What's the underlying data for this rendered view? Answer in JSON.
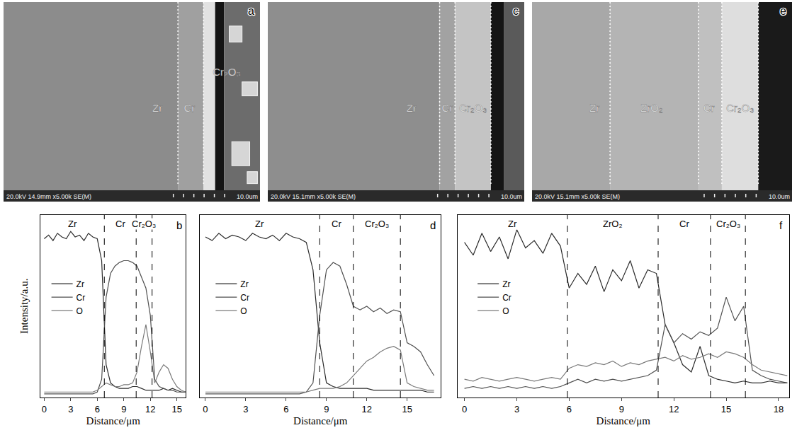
{
  "images": [
    {
      "panel_label": "a",
      "labels": [
        "Zr",
        "Cr",
        "Cr₂O₃"
      ],
      "info": "20.0kV 14.9mm x5.00k SE(M)",
      "scale_bar": "10.0um"
    },
    {
      "panel_label": "c",
      "labels": [
        "Zr",
        "Cr",
        "Cr₂O₃"
      ],
      "info": "20.0kV 15.1mm x5.00k SE(M)",
      "scale_bar": "10.0um"
    },
    {
      "panel_label": "e",
      "labels": [
        "Zr",
        "ZrO₂",
        "Cr",
        "Cr₂O₃"
      ],
      "info": "20.0kV 15.1mm x5.00k SE(M)",
      "scale_bar": "10.0um"
    }
  ],
  "chart_data": [
    {
      "type": "line",
      "panel_label": "b",
      "x_label": "Distance/μm",
      "y_label": "Intensity/a.u.",
      "xlim": [
        -0.4,
        16
      ],
      "xticks": [
        0,
        3,
        6,
        9,
        12,
        15
      ],
      "ylim": [
        0,
        100
      ],
      "tick_labels": "x",
      "legend": "left",
      "regions": [
        "Zr",
        "Cr",
        "Cr₂O₃"
      ],
      "boundaries": [
        6.8,
        10.4,
        12.2
      ],
      "x": [
        0,
        0.5,
        1,
        1.5,
        2,
        2.5,
        3,
        3.5,
        4,
        4.5,
        5,
        5.5,
        6,
        6.5,
        7,
        7.5,
        8,
        8.5,
        9,
        9.5,
        10,
        10.5,
        11,
        11.5,
        12,
        12.5,
        13,
        13.5,
        14,
        14.5,
        15,
        15.5,
        16
      ],
      "series": [
        {
          "name": "Zr",
          "color": "#2b2b2b",
          "values": [
            87,
            89,
            86,
            90,
            88,
            87,
            91,
            88,
            89,
            86,
            90,
            88,
            87,
            75,
            18,
            8,
            6,
            5,
            5,
            5,
            6,
            6,
            5,
            4,
            4,
            4,
            4,
            5,
            4,
            5,
            4,
            3,
            3
          ]
        },
        {
          "name": "Cr",
          "color": "#505050",
          "values": [
            2,
            2,
            2,
            2,
            2,
            2,
            2,
            2,
            2,
            2,
            2,
            2,
            3,
            10,
            55,
            68,
            72,
            74,
            75,
            75,
            74,
            72,
            66,
            60,
            45,
            10,
            6,
            5,
            4,
            4,
            3,
            3,
            3
          ]
        },
        {
          "name": "O",
          "color": "#7a7a7a",
          "values": [
            3,
            3,
            3,
            3,
            3,
            3,
            3,
            3,
            3,
            3,
            3,
            3,
            4,
            6,
            8,
            7,
            6,
            6,
            7,
            7,
            8,
            14,
            28,
            40,
            25,
            8,
            14,
            18,
            16,
            10,
            6,
            4,
            3
          ]
        }
      ]
    },
    {
      "type": "line",
      "panel_label": "d",
      "x_label": "Distance/μm",
      "xlim": [
        -0.4,
        17.5
      ],
      "xticks": [
        0,
        3,
        6,
        9,
        12,
        15
      ],
      "ylim": [
        0,
        100
      ],
      "tick_labels": "x",
      "legend": "left",
      "regions": [
        "Zr",
        "Cr",
        "Cr₂O₃"
      ],
      "boundaries": [
        8.5,
        11,
        14.5
      ],
      "x": [
        0,
        0.5,
        1,
        1.5,
        2,
        2.5,
        3,
        3.5,
        4,
        4.5,
        5,
        5.5,
        6,
        6.5,
        7,
        7.5,
        8,
        8.5,
        9,
        9.5,
        10,
        10.5,
        11,
        11.5,
        12,
        12.5,
        13,
        13.5,
        14,
        14.5,
        15,
        15.5,
        16,
        16.5,
        17
      ],
      "series": [
        {
          "name": "Zr",
          "color": "#2b2b2b",
          "values": [
            88,
            86,
            90,
            87,
            89,
            88,
            86,
            90,
            88,
            87,
            89,
            86,
            90,
            88,
            87,
            85,
            70,
            30,
            8,
            6,
            5,
            5,
            5,
            5,
            5,
            4,
            4,
            4,
            4,
            4,
            4,
            4,
            4,
            3,
            3
          ]
        },
        {
          "name": "Cr",
          "color": "#505050",
          "values": [
            2,
            2,
            2,
            2,
            2,
            2,
            2,
            2,
            2,
            2,
            2,
            2,
            2,
            2,
            2,
            3,
            8,
            45,
            70,
            74,
            72,
            62,
            50,
            48,
            50,
            47,
            49,
            46,
            48,
            47,
            30,
            28,
            25,
            18,
            12
          ]
        },
        {
          "name": "O",
          "color": "#7a7a7a",
          "values": [
            3,
            3,
            3,
            3,
            3,
            3,
            3,
            3,
            3,
            3,
            3,
            3,
            3,
            3,
            3,
            3,
            4,
            5,
            5,
            5,
            6,
            8,
            12,
            16,
            20,
            22,
            25,
            27,
            28,
            26,
            8,
            6,
            5,
            4,
            4
          ]
        }
      ]
    },
    {
      "type": "line",
      "panel_label": "f",
      "x_label": "Distance/μm",
      "xlim": [
        -0.4,
        18.6
      ],
      "xticks": [
        0,
        3,
        6,
        9,
        12,
        15,
        18
      ],
      "ylim": [
        0,
        100
      ],
      "tick_labels": "x",
      "legend": "left",
      "regions": [
        "Zr",
        "ZrO₂",
        "Cr",
        "Cr₂O₃"
      ],
      "boundaries": [
        5.9,
        11.1,
        14.1,
        16.1
      ],
      "x": [
        0,
        0.5,
        1,
        1.5,
        2,
        2.5,
        3,
        3.5,
        4,
        4.5,
        5,
        5.5,
        6,
        6.5,
        7,
        7.5,
        8,
        8.5,
        9,
        9.5,
        10,
        10.5,
        11,
        11.5,
        12,
        12.5,
        13,
        13.5,
        14,
        14.5,
        15,
        15.5,
        16,
        16.5,
        17,
        17.5,
        18,
        18.5
      ],
      "series": [
        {
          "name": "Zr",
          "color": "#2b2b2b",
          "values": [
            85,
            78,
            90,
            80,
            88,
            76,
            92,
            82,
            86,
            79,
            90,
            83,
            60,
            68,
            62,
            72,
            58,
            70,
            64,
            75,
            60,
            70,
            68,
            40,
            30,
            18,
            14,
            28,
            12,
            10,
            9,
            8,
            9,
            8,
            8,
            9,
            8,
            8
          ]
        },
        {
          "name": "Cr",
          "color": "#505050",
          "values": [
            5,
            6,
            5,
            6,
            5,
            6,
            5,
            6,
            5,
            6,
            5,
            6,
            8,
            10,
            8,
            10,
            9,
            10,
            9,
            10,
            11,
            12,
            15,
            40,
            30,
            35,
            32,
            36,
            34,
            38,
            55,
            42,
            50,
            15,
            12,
            10,
            9,
            8
          ]
        },
        {
          "name": "O",
          "color": "#7a7a7a",
          "values": [
            10,
            9,
            11,
            10,
            9,
            10,
            11,
            10,
            9,
            10,
            11,
            10,
            16,
            18,
            17,
            19,
            18,
            20,
            17,
            19,
            18,
            20,
            21,
            22,
            20,
            23,
            21,
            22,
            24,
            22,
            25,
            24,
            22,
            18,
            15,
            14,
            13,
            12
          ]
        }
      ]
    }
  ]
}
